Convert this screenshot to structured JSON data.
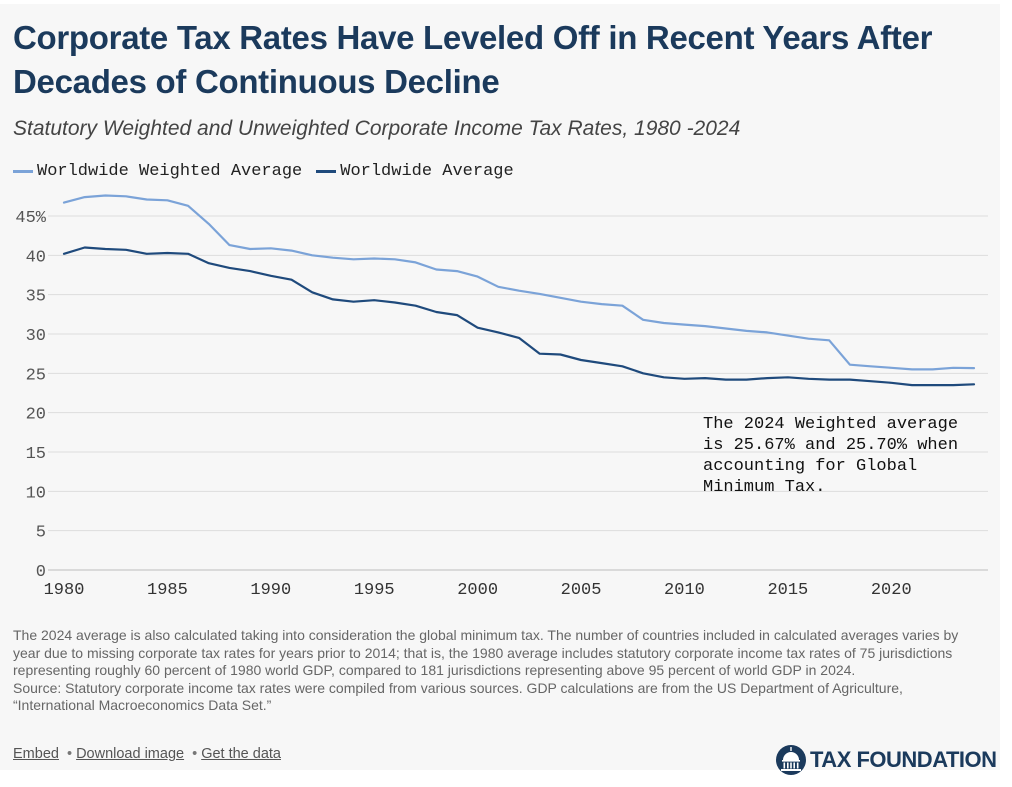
{
  "title": "Corporate Tax Rates Have Leveled Off in Recent Years After Decades of Continuous Decline",
  "subtitle": "Statutory Weighted and Unweighted Corporate Income Tax Rates, 1980 -2024",
  "legend": [
    {
      "label": "Worldwide Weighted Average",
      "color": "#7ba3d8"
    },
    {
      "label": "Worldwide Average",
      "color": "#1f4a7c"
    }
  ],
  "annotation": "The 2024 Weighted average is 25.67% and 25.70% when accounting for Global Minimum Tax.",
  "notes": {
    "line1": "The 2024 average is also calculated taking into consideration the global minimum tax. The number of countries included in calculated averages varies by year due to missing corporate tax rates for years prior to 2014; that is, the 1980 average includes statutory corporate income tax rates of 75 jurisdictions representing roughly 60 percent of 1980 world GDP, compared to 181 jurisdictions representing above 95 percent of world GDP in 2024.",
    "line2": "Source: Statutory corporate income tax rates were compiled from various sources. GDP calculations are from the US Department of Agriculture, “International Macroeconomics Data Set.”"
  },
  "footer": {
    "embed": "Embed",
    "download": "Download image",
    "getdata": "Get the data",
    "separator": "•"
  },
  "brand": {
    "name": "TAX FOUNDATION",
    "color": "#1b3a5c"
  },
  "chart_data": {
    "type": "line",
    "x": [
      1980,
      1981,
      1982,
      1983,
      1984,
      1985,
      1986,
      1987,
      1988,
      1989,
      1990,
      1991,
      1992,
      1993,
      1994,
      1995,
      1996,
      1997,
      1998,
      1999,
      2000,
      2001,
      2002,
      2003,
      2004,
      2005,
      2006,
      2007,
      2008,
      2009,
      2010,
      2011,
      2012,
      2013,
      2014,
      2015,
      2016,
      2017,
      2018,
      2019,
      2020,
      2021,
      2022,
      2023,
      2024
    ],
    "series": [
      {
        "name": "Worldwide Weighted Average",
        "color": "#7ba3d8",
        "values": [
          46.7,
          47.4,
          47.6,
          47.5,
          47.1,
          47.0,
          46.3,
          44.0,
          41.3,
          40.8,
          40.9,
          40.6,
          40.0,
          39.7,
          39.5,
          39.6,
          39.5,
          39.1,
          38.2,
          38.0,
          37.3,
          36.0,
          35.5,
          35.1,
          34.6,
          34.1,
          33.8,
          33.6,
          31.8,
          31.4,
          31.2,
          31.0,
          30.7,
          30.4,
          30.2,
          29.8,
          29.4,
          29.2,
          26.1,
          25.9,
          25.7,
          25.5,
          25.5,
          25.7,
          25.67
        ]
      },
      {
        "name": "Worldwide Average",
        "color": "#1f4a7c",
        "values": [
          40.2,
          41.0,
          40.8,
          40.7,
          40.2,
          40.3,
          40.2,
          39.0,
          38.4,
          38.0,
          37.4,
          36.9,
          35.3,
          34.4,
          34.1,
          34.3,
          34.0,
          33.6,
          32.8,
          32.4,
          30.8,
          30.2,
          29.5,
          27.5,
          27.4,
          26.7,
          26.3,
          25.9,
          25.0,
          24.5,
          24.3,
          24.4,
          24.2,
          24.2,
          24.4,
          24.5,
          24.3,
          24.2,
          24.2,
          24.0,
          23.8,
          23.5,
          23.5,
          23.5,
          23.6
        ]
      }
    ],
    "xlim": [
      1980,
      2024
    ],
    "ylim": [
      0,
      45
    ],
    "yticks": [
      0,
      5,
      10,
      15,
      20,
      25,
      30,
      35,
      40,
      45
    ],
    "ytick_labels": [
      "0",
      "5",
      "10",
      "15",
      "20",
      "25",
      "30",
      "35",
      "40",
      "45%"
    ],
    "xticks": [
      1980,
      1985,
      1990,
      1995,
      2000,
      2005,
      2010,
      2015,
      2020
    ],
    "ytick_color": "#555555",
    "grid": true,
    "legend_position": "top-left"
  }
}
